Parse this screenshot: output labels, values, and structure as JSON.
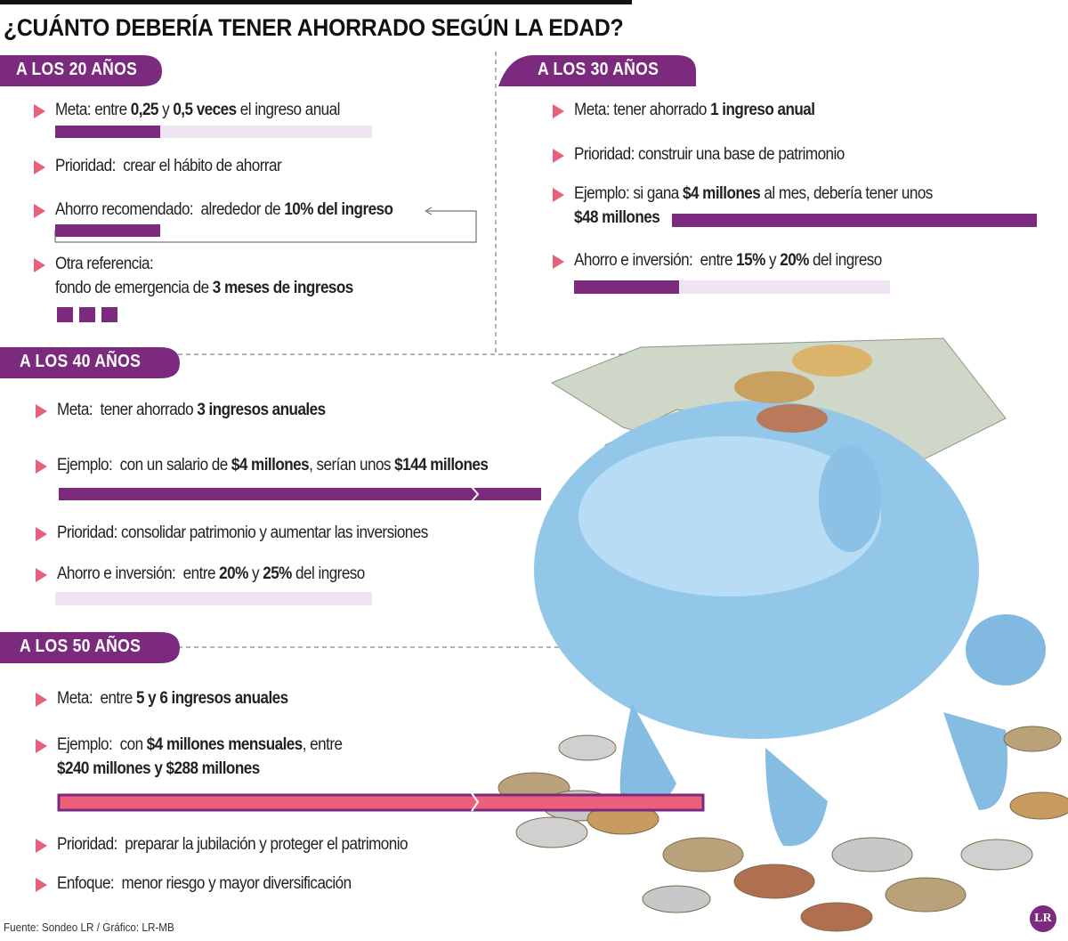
{
  "header": {
    "title": "¿CUÁNTO DEBERÍA TENER AHORRADO SEGÚN LA EDAD?"
  },
  "sections": [
    {
      "title": "A LOS 20 AÑOS",
      "items": [
        {
          "lines": [
            [
              "Meta: entre ",
              "0,25",
              " y ",
              "0,5 veces",
              " el ingreso anual"
            ]
          ]
        },
        {
          "lines": [
            [
              "Prioridad:  crear el hábito de ahorrar"
            ]
          ]
        },
        {
          "lines": [
            [
              "Ahorro recomendado:  alrededor de ",
              "10% del ingreso"
            ]
          ]
        },
        {
          "lines": [
            [
              "Otra referencia:"
            ],
            [
              "fondo de emergencia de ",
              "3 meses de ingresos"
            ]
          ]
        }
      ]
    },
    {
      "title": "A LOS 30 AÑOS",
      "items": [
        {
          "lines": [
            [
              "Meta: tener ahorrado ",
              "1 ingreso anual"
            ]
          ]
        },
        {
          "lines": [
            [
              "Prioridad: construir una base de patrimonio"
            ]
          ]
        },
        {
          "lines": [
            [
              "Ejemplo: si gana ",
              "$4 millones",
              " al mes, debería tener unos"
            ],
            [
              "$48 millones"
            ]
          ]
        },
        {
          "lines": [
            [
              "Ahorro e inversión:  entre ",
              "15%",
              " y ",
              "20%",
              " del ingreso"
            ]
          ]
        }
      ]
    },
    {
      "title": "A LOS 40 AÑOS",
      "items": [
        {
          "lines": [
            [
              "Meta:  tener ahorrado ",
              "3 ingresos anuales"
            ]
          ]
        },
        {
          "lines": [
            [
              "Ejemplo:  con un salario de ",
              "$4 millones",
              ", serían unos ",
              "$144 millones"
            ]
          ]
        },
        {
          "lines": [
            [
              "Prioridad: consolidar patrimonio y aumentar las inversiones"
            ]
          ]
        },
        {
          "lines": [
            [
              "Ahorro e inversión:  entre ",
              "20%",
              " y ",
              "25%",
              " del ingreso"
            ]
          ]
        }
      ]
    },
    {
      "title": "A LOS 50 AÑOS",
      "items": [
        {
          "lines": [
            [
              "Meta:  entre ",
              "5 y 6 ingresos anuales"
            ]
          ]
        },
        {
          "lines": [
            [
              "Ejemplo:  con ",
              "$4 millones mensuales",
              ", entre"
            ],
            [
              "$240 millones y $288 millones"
            ]
          ]
        },
        {
          "lines": [
            [
              "Prioridad:  preparar la jubilación y proteger el patrimonio"
            ]
          ]
        },
        {
          "lines": [
            [
              "Enfoque:  menor riesgo y mayor diversificación"
            ]
          ]
        }
      ]
    }
  ],
  "footer": {
    "source": "Fuente: Sondeo LR / Gráfico: LR-MB",
    "logo": "LR"
  }
}
